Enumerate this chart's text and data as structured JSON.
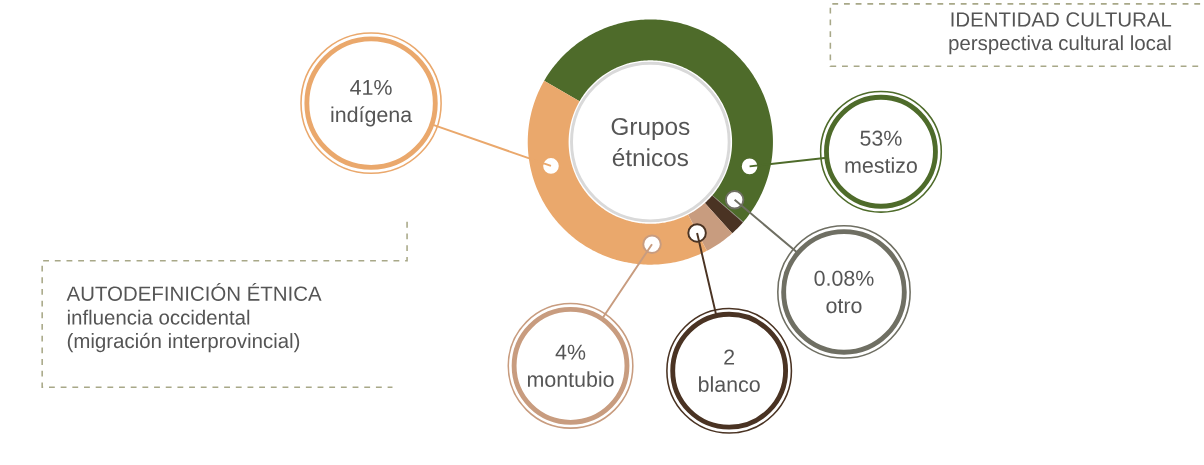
{
  "chart_data": {
    "type": "donut",
    "title": "Grupos étnicos",
    "categories": [
      "mestizo",
      "otro",
      "blanco",
      "montubio",
      "indígena"
    ],
    "values": [
      53,
      0.08,
      2,
      4,
      41
    ],
    "value_labels": [
      "53%",
      "0.08%",
      "2",
      "4%",
      "41%"
    ],
    "legend": "bottom",
    "colors": [
      "#4e6b2a",
      "#6f6f63",
      "#4a3323",
      "#c89c7f",
      "#eaa86c"
    ],
    "annotations": [
      "IDENTIDAD CULTURAL",
      "perspectiva cultural local",
      "AUTODEFINICIÓN ÉTNICA",
      "influencia occidental",
      "(migración interprovincial)"
    ]
  }
}
